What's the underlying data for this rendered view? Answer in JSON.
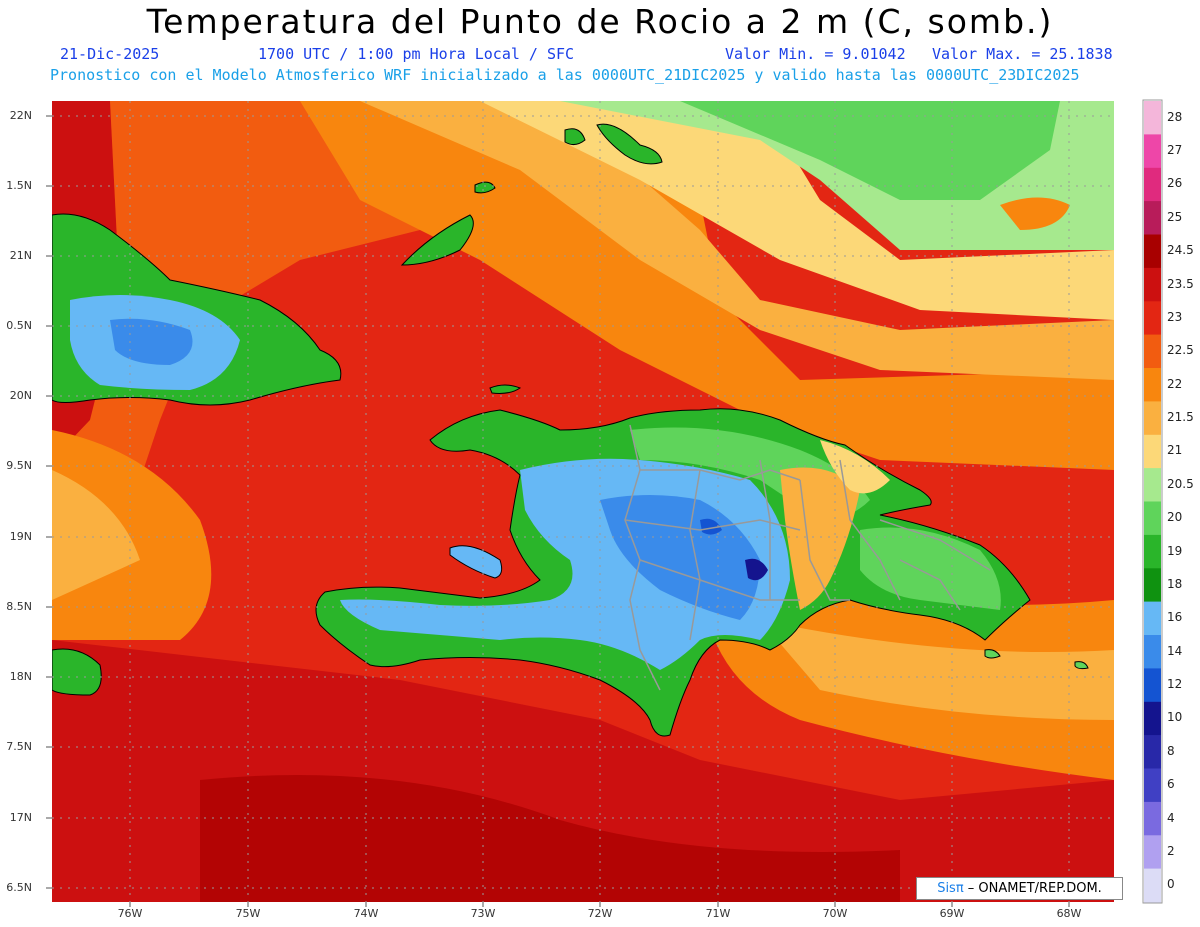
{
  "header": {
    "title": "Temperatura del Punto de Rocio a 2 m (C, somb.)",
    "date": "21-Dic-2025",
    "time": "1700 UTC / 1:00 pm Hora Local / SFC",
    "min": "Valor Min. = 9.01042",
    "max": "Valor Max. = 25.1838",
    "model_info": "Pronostico con el Modelo Atmosferico WRF inicializado a las 0000UTC_21DIC2025 y valido hasta las  0000UTC_23DIC2025"
  },
  "axes": {
    "lat_labels": [
      "22N",
      "1.5N",
      "21N",
      "0.5N",
      "20N",
      "9.5N",
      "19N",
      "8.5N",
      "18N",
      "7.5N",
      "17N",
      "6.5N"
    ],
    "lon_labels": [
      "76W",
      "75W",
      "74W",
      "73W",
      "72W",
      "71W",
      "70W",
      "69W",
      "68W"
    ]
  },
  "colorbar": {
    "labels": [
      "28",
      "27",
      "26",
      "25",
      "24.5",
      "23.5",
      "23",
      "22.5",
      "22",
      "21.5",
      "21",
      "20.5",
      "20",
      "19",
      "18",
      "16",
      "14",
      "12",
      "10",
      "8",
      "6",
      "4",
      "2",
      "0"
    ],
    "colors": [
      "#f4b6da",
      "#ee46a8",
      "#e02a7e",
      "#b81c5a",
      "#a80000",
      "#cc1010",
      "#e32613",
      "#f25c10",
      "#f8860e",
      "#fab040",
      "#fcd878",
      "#a6e98e",
      "#5fd45b",
      "#2ab52a",
      "#0f9210",
      "#66b8f5",
      "#3a8bea",
      "#1454d2",
      "#14148e",
      "#2828a8",
      "#4040c4",
      "#7a6ae0",
      "#b0a0f0",
      "#dcdcf6"
    ]
  },
  "credit": {
    "brand": "Sisπ",
    "rest": " – ONAMET/REP.DOM."
  }
}
